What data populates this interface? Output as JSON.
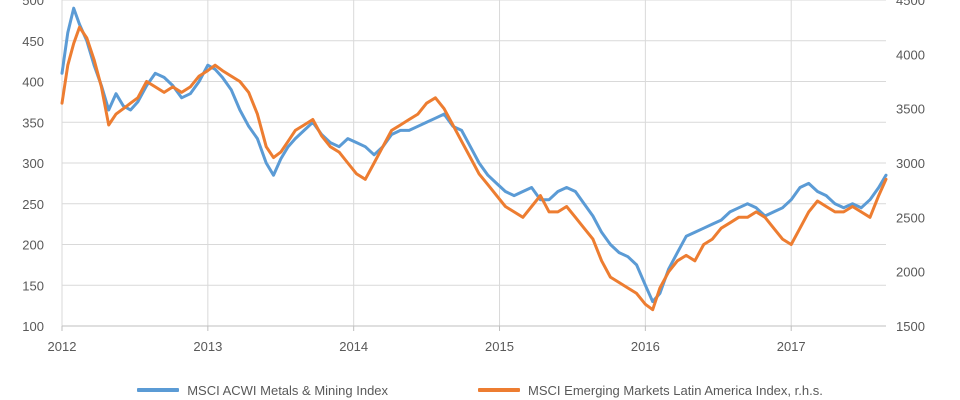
{
  "chart_data": {
    "type": "line",
    "title": "",
    "xlabel": "",
    "ylabel": "",
    "y2label": "",
    "grid": true,
    "legend_position": "bottom",
    "x_ticks": [
      "2012",
      "2013",
      "2014",
      "2015",
      "2016",
      "2017"
    ],
    "x_range": [
      2012.0,
      2017.65
    ],
    "y_left_ticks": [
      "100",
      "150",
      "200",
      "250",
      "300",
      "350",
      "400",
      "450",
      "500"
    ],
    "y_left_range": [
      100,
      500
    ],
    "y_right_ticks": [
      "1500",
      "2000",
      "2500",
      "3000",
      "3500",
      "4000",
      "4500"
    ],
    "y_right_range": [
      1500,
      4500
    ],
    "series": [
      {
        "name": "MSCI ACWI Metals & Mining Index",
        "axis": "left",
        "color": "#5b9bd5",
        "x": [
          2012.0,
          2012.04,
          2012.08,
          2012.12,
          2012.17,
          2012.22,
          2012.27,
          2012.32,
          2012.37,
          2012.42,
          2012.47,
          2012.52,
          2012.58,
          2012.64,
          2012.7,
          2012.76,
          2012.82,
          2012.88,
          2012.94,
          2013.0,
          2013.05,
          2013.1,
          2013.16,
          2013.22,
          2013.28,
          2013.34,
          2013.4,
          2013.45,
          2013.5,
          2013.55,
          2013.6,
          2013.66,
          2013.72,
          2013.78,
          2013.84,
          2013.9,
          2013.96,
          2014.02,
          2014.08,
          2014.14,
          2014.2,
          2014.26,
          2014.32,
          2014.38,
          2014.44,
          2014.5,
          2014.56,
          2014.62,
          2014.68,
          2014.74,
          2014.8,
          2014.86,
          2014.92,
          2014.98,
          2015.04,
          2015.1,
          2015.16,
          2015.22,
          2015.28,
          2015.34,
          2015.4,
          2015.46,
          2015.52,
          2015.58,
          2015.64,
          2015.7,
          2015.76,
          2015.82,
          2015.88,
          2015.94,
          2016.0,
          2016.05,
          2016.1,
          2016.16,
          2016.22,
          2016.28,
          2016.34,
          2016.4,
          2016.46,
          2016.52,
          2016.58,
          2016.64,
          2016.7,
          2016.76,
          2016.82,
          2016.88,
          2016.94,
          2017.0,
          2017.06,
          2017.12,
          2017.18,
          2017.24,
          2017.3,
          2017.36,
          2017.42,
          2017.48,
          2017.54,
          2017.6,
          2017.65
        ],
        "y": [
          410,
          460,
          490,
          470,
          450,
          420,
          395,
          365,
          385,
          370,
          365,
          375,
          395,
          410,
          405,
          395,
          380,
          385,
          400,
          420,
          415,
          405,
          390,
          365,
          345,
          330,
          300,
          285,
          305,
          320,
          330,
          340,
          350,
          335,
          325,
          320,
          330,
          325,
          320,
          310,
          320,
          335,
          340,
          340,
          345,
          350,
          355,
          360,
          345,
          340,
          320,
          300,
          285,
          275,
          265,
          260,
          265,
          270,
          255,
          255,
          265,
          270,
          265,
          250,
          235,
          215,
          200,
          190,
          185,
          175,
          150,
          130,
          140,
          170,
          190,
          210,
          215,
          220,
          225,
          230,
          240,
          245,
          250,
          245,
          235,
          240,
          245,
          255,
          270,
          275,
          265,
          260,
          250,
          245,
          250,
          245,
          255,
          270,
          285
        ]
      },
      {
        "name": "MSCI Emerging Markets Latin America Index, r.h.s.",
        "axis": "right",
        "color": "#ed7d31",
        "x": [
          2012.0,
          2012.04,
          2012.08,
          2012.12,
          2012.17,
          2012.22,
          2012.27,
          2012.32,
          2012.37,
          2012.42,
          2012.47,
          2012.52,
          2012.58,
          2012.64,
          2012.7,
          2012.76,
          2012.82,
          2012.88,
          2012.94,
          2013.0,
          2013.05,
          2013.1,
          2013.16,
          2013.22,
          2013.28,
          2013.34,
          2013.4,
          2013.45,
          2013.5,
          2013.55,
          2013.6,
          2013.66,
          2013.72,
          2013.78,
          2013.84,
          2013.9,
          2013.96,
          2014.02,
          2014.08,
          2014.14,
          2014.2,
          2014.26,
          2014.32,
          2014.38,
          2014.44,
          2014.5,
          2014.56,
          2014.62,
          2014.68,
          2014.74,
          2014.8,
          2014.86,
          2014.92,
          2014.98,
          2015.04,
          2015.1,
          2015.16,
          2015.22,
          2015.28,
          2015.34,
          2015.4,
          2015.46,
          2015.52,
          2015.58,
          2015.64,
          2015.7,
          2015.76,
          2015.82,
          2015.88,
          2015.94,
          2016.0,
          2016.05,
          2016.1,
          2016.16,
          2016.22,
          2016.28,
          2016.34,
          2016.4,
          2016.46,
          2016.52,
          2016.58,
          2016.64,
          2016.7,
          2016.76,
          2016.82,
          2016.88,
          2016.94,
          2017.0,
          2017.06,
          2017.12,
          2017.18,
          2017.24,
          2017.3,
          2017.36,
          2017.42,
          2017.48,
          2017.54,
          2017.6,
          2017.65
        ],
        "y": [
          3550,
          3900,
          4100,
          4250,
          4150,
          3950,
          3700,
          3350,
          3450,
          3500,
          3550,
          3600,
          3750,
          3700,
          3650,
          3700,
          3650,
          3700,
          3800,
          3850,
          3900,
          3850,
          3800,
          3750,
          3650,
          3450,
          3150,
          3050,
          3100,
          3200,
          3300,
          3350,
          3400,
          3250,
          3150,
          3100,
          3000,
          2900,
          2850,
          3000,
          3150,
          3300,
          3350,
          3400,
          3450,
          3550,
          3600,
          3500,
          3350,
          3200,
          3050,
          2900,
          2800,
          2700,
          2600,
          2550,
          2500,
          2600,
          2700,
          2550,
          2550,
          2600,
          2500,
          2400,
          2300,
          2100,
          1950,
          1900,
          1850,
          1800,
          1700,
          1650,
          1850,
          2000,
          2100,
          2150,
          2100,
          2250,
          2300,
          2400,
          2450,
          2500,
          2500,
          2550,
          2500,
          2400,
          2300,
          2250,
          2400,
          2550,
          2650,
          2600,
          2550,
          2550,
          2600,
          2550,
          2500,
          2700,
          2850
        ]
      }
    ]
  }
}
